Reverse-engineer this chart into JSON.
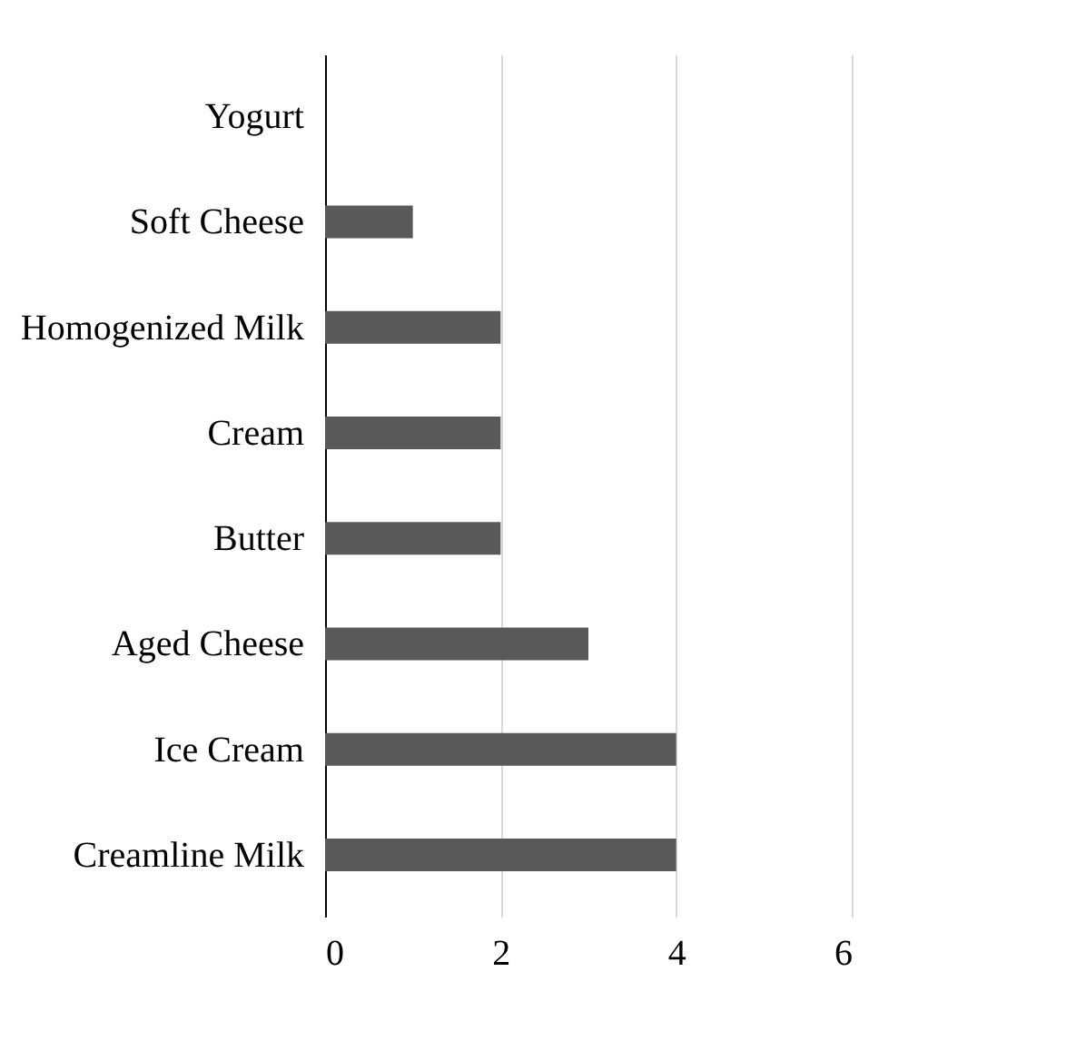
{
  "chart_data": {
    "type": "bar",
    "orientation": "horizontal",
    "categories": [
      "Yogurt",
      "Soft Cheese",
      "Homogenized Milk",
      "Cream",
      "Butter",
      "Aged Cheese",
      "Ice Cream",
      "Creamline Milk"
    ],
    "values": [
      0,
      1,
      2,
      2,
      2,
      3,
      4,
      4
    ],
    "color": "#595959",
    "xlim": [
      0,
      6
    ],
    "xticks": [
      0,
      2,
      4,
      6
    ],
    "grid": "x"
  }
}
